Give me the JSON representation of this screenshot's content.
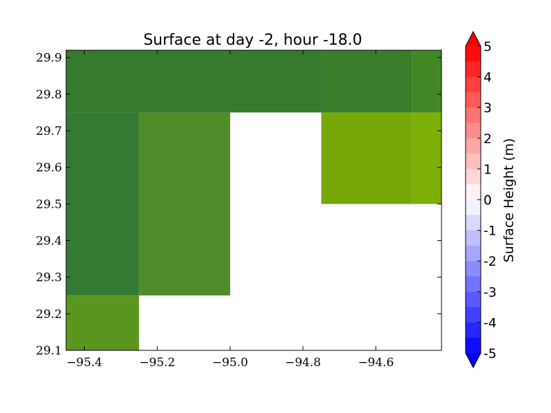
{
  "chart_data": {
    "type": "heatmap",
    "title": "Surface at day -2, hour -18.0",
    "xlabel": "",
    "ylabel": "",
    "xlim": [
      -95.45,
      -94.42
    ],
    "ylim": [
      29.1,
      29.92
    ],
    "x_ticks": [
      -95.4,
      -95.2,
      -95.0,
      -94.8,
      -94.6
    ],
    "x_tick_labels": [
      "−95.4",
      "−95.2",
      "−95.0",
      "−94.8",
      "−94.6"
    ],
    "y_ticks": [
      29.1,
      29.2,
      29.3,
      29.4,
      29.5,
      29.6,
      29.7,
      29.8,
      29.9
    ],
    "y_tick_labels": [
      "29.1",
      "29.2",
      "29.3",
      "29.4",
      "29.5",
      "29.6",
      "29.7",
      "29.8",
      "29.9"
    ],
    "cells": [
      {
        "x0": -95.45,
        "x1": -95.25,
        "y0": 29.1,
        "y1": 29.25,
        "color": "#5a951e"
      },
      {
        "x0": -95.45,
        "x1": -95.25,
        "y0": 29.25,
        "y1": 29.75,
        "color": "#357a32"
      },
      {
        "x0": -95.25,
        "x1": -95.0,
        "y0": 29.25,
        "y1": 29.75,
        "color": "#4d8c28"
      },
      {
        "x0": -94.75,
        "x1": -94.5,
        "y0": 29.5,
        "y1": 29.75,
        "color": "#76a809"
      },
      {
        "x0": -94.5,
        "x1": -94.42,
        "y0": 29.5,
        "y1": 29.75,
        "color": "#7db004"
      },
      {
        "x0": -95.45,
        "x1": -94.75,
        "y0": 29.75,
        "y1": 29.92,
        "color": "#357a2e"
      },
      {
        "x0": -94.75,
        "x1": -94.5,
        "y0": 29.75,
        "y1": 29.92,
        "color": "#3a7e2c"
      },
      {
        "x0": -94.5,
        "x1": -94.42,
        "y0": 29.75,
        "y1": 29.92,
        "color": "#438626"
      }
    ],
    "colorbar": {
      "label": "Surface Height (m)",
      "min": -5,
      "max": 5,
      "extend": "both",
      "tick_values": [
        5,
        4,
        3,
        2,
        1,
        0,
        -1,
        -2,
        -3,
        -4,
        -5
      ],
      "tick_labels": [
        "5",
        "4",
        "3",
        "2",
        "1",
        "0",
        "-1",
        "-2",
        "-3",
        "-4",
        "-5"
      ],
      "levels_count": 20,
      "colormap": "bwr",
      "upper_extend_color": "#ff0000",
      "lower_extend_color": "#0000ff"
    }
  }
}
